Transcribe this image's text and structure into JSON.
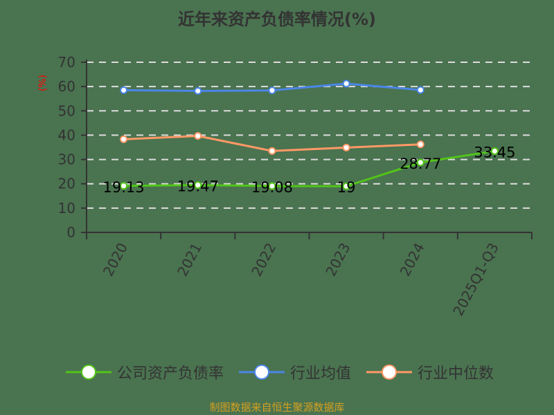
{
  "title": "近年来资产负债率情况(%)",
  "ylabel": "(%)",
  "source": "制图数据来自恒生聚源数据库",
  "legend": [
    {
      "label": "公司资产负债率",
      "color": "#52c41a"
    },
    {
      "label": "行业均值",
      "color": "#4a86e8"
    },
    {
      "label": "行业中位数",
      "color": "#ff9966"
    }
  ],
  "chart_data": {
    "type": "line",
    "title": "近年来资产负债率情况(%)",
    "xlabel": "",
    "ylabel": "(%)",
    "categories": [
      "2020",
      "2021",
      "2022",
      "2023",
      "2024",
      "2025Q1-Q3"
    ],
    "yticks": [
      0,
      10,
      20,
      30,
      40,
      50,
      60,
      70
    ],
    "ylim": [
      0,
      70
    ],
    "grid": true,
    "legend_position": "bottom",
    "series": [
      {
        "name": "公司资产负债率",
        "color": "#52c41a",
        "values": [
          19.13,
          19.47,
          19.08,
          19,
          28.77,
          33.45
        ],
        "labels": [
          "19.13",
          "19.47",
          "19.08",
          "19",
          "28.77",
          "33.45"
        ]
      },
      {
        "name": "行业均值",
        "color": "#4a86e8",
        "values": [
          58.5,
          58.2,
          58.4,
          61.2,
          58.6,
          null
        ]
      },
      {
        "name": "行业中位数",
        "color": "#ff9966",
        "values": [
          38.3,
          39.7,
          33.5,
          34.9,
          36.2,
          null
        ]
      }
    ]
  }
}
